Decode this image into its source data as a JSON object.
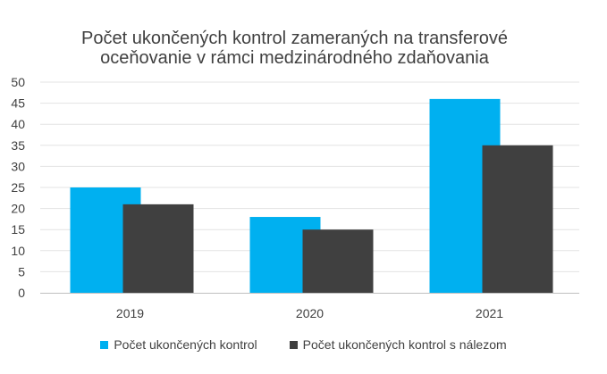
{
  "chart_data": {
    "type": "bar",
    "title_lines": [
      "Počet ukončených kontrol zameraných na transferové",
      "oceňovanie v rámci medzinárodného zdaňovania"
    ],
    "categories": [
      "2019",
      "2020",
      "2021"
    ],
    "series": [
      {
        "name": "Počet ukončených kontrol",
        "values": [
          25,
          18,
          46
        ],
        "color": "#00B0F0"
      },
      {
        "name": "Počet ukončených kontrol s nálezom",
        "values": [
          21,
          15,
          35
        ],
        "color": "#404040"
      }
    ],
    "ylim": [
      0,
      50
    ],
    "yticks": [
      0,
      5,
      10,
      15,
      20,
      25,
      30,
      35,
      40,
      45,
      50
    ],
    "grid": true,
    "legend_position": "bottom",
    "xlabel": "",
    "ylabel": ""
  }
}
